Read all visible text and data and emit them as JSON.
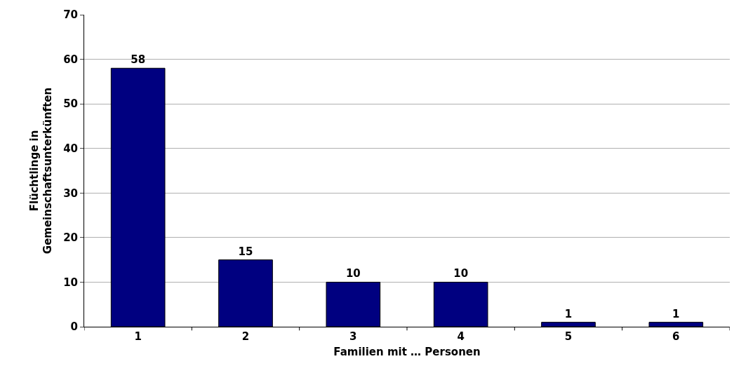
{
  "chart_data": {
    "type": "bar",
    "xlabel": "Familien mit … Personen",
    "ylabel": "Flüchtlinge in\nGemeinschaftsunterkünften",
    "categories": [
      "1",
      "2",
      "3",
      "4",
      "5",
      "6"
    ],
    "values": [
      58,
      15,
      10,
      10,
      1,
      1
    ],
    "color": "#000080",
    "ylim": [
      0,
      70
    ],
    "yticks": [
      0,
      10,
      20,
      30,
      40,
      50,
      60,
      70
    ],
    "grid": "y",
    "data_labels": true
  }
}
